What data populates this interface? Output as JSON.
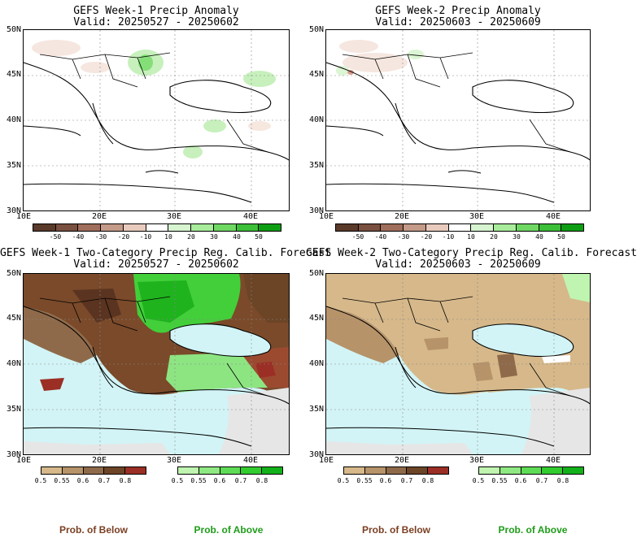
{
  "panels": [
    {
      "title": "GEFS Week-1 Precip Anomaly",
      "valid": "Valid: 20250527 - 20250602"
    },
    {
      "title": "GEFS Week-2 Precip Anomaly",
      "valid": "Valid: 20250603 - 20250609"
    },
    {
      "title": "GEFS Week-1 Two-Category Precip Reg. Calib. Forecast",
      "valid": "Valid: 20250527 - 20250602"
    },
    {
      "title": "GEFS Week-2 Two-Category Precip Reg. Calib. Forecast",
      "valid": "Valid: 20250603 - 20250609"
    }
  ],
  "axes": {
    "lat_labels": [
      "50N",
      "45N",
      "40N",
      "35N",
      "30N"
    ],
    "lon_labels": [
      "10E",
      "20E",
      "30E",
      "40E"
    ]
  },
  "anomaly_colorbar": {
    "labels": [
      "-50",
      "-40",
      "-30",
      "-20",
      "-10",
      "10",
      "20",
      "30",
      "40",
      "50"
    ],
    "colors": [
      "#5a3a2a",
      "#7a5040",
      "#a06e5c",
      "#c49a88",
      "#e8cbbe",
      "#ffffff",
      "#d7f5d0",
      "#a8ec9c",
      "#6fd863",
      "#3dbf3a",
      "#0e9e14"
    ]
  },
  "prob_colorbar": {
    "below": {
      "labels": [
        "0.5",
        "0.55",
        "0.6",
        "0.7",
        "0.8"
      ],
      "colors": [
        "#d6b88a",
        "#b7936a",
        "#8f6a4a",
        "#6c4426",
        "#9b2f25"
      ]
    },
    "above": {
      "labels": [
        "0.5",
        "0.55",
        "0.6",
        "0.7",
        "0.8"
      ],
      "colors": [
        "#bff5b0",
        "#8fe982",
        "#5fdc55",
        "#32cc2f",
        "#12b11a"
      ]
    }
  },
  "legend": {
    "below": "Prob. of Below",
    "above": "Prob. of Above",
    "below_color": "#7a3f22",
    "above_color": "#1f9c1a"
  }
}
